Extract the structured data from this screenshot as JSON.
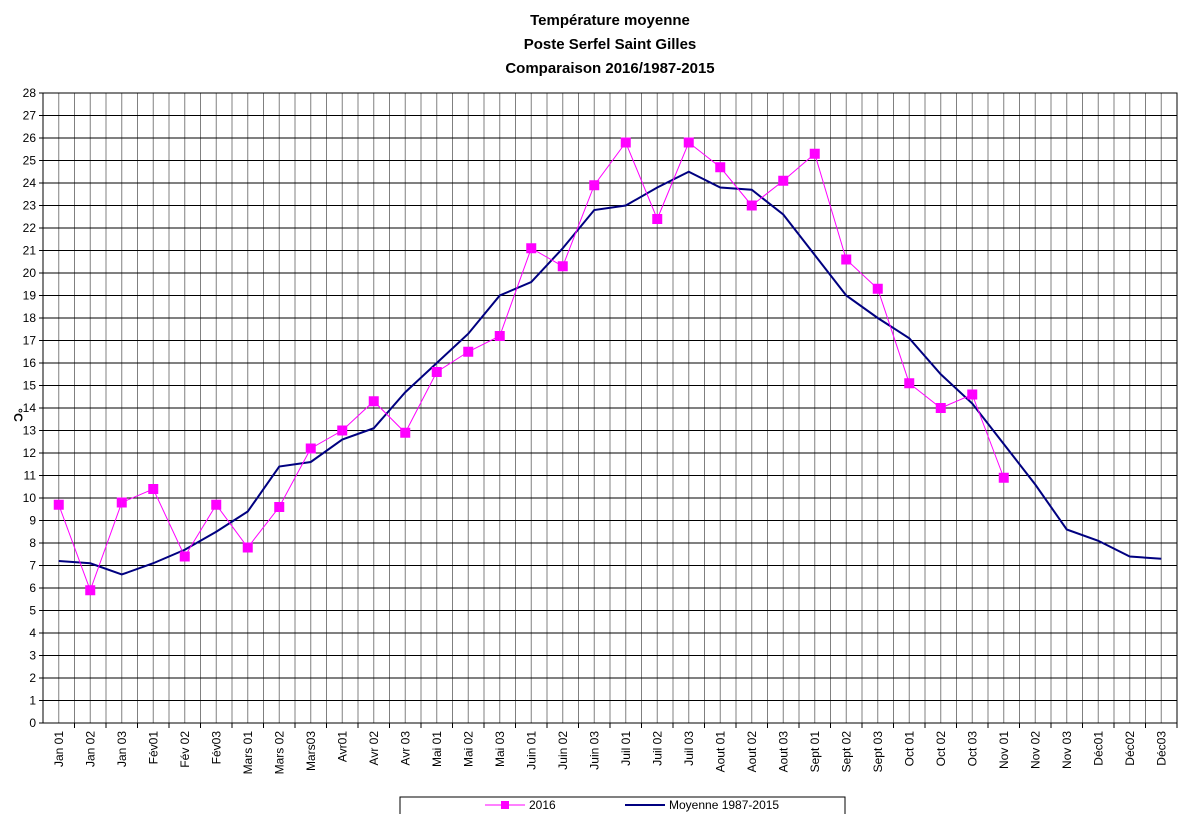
{
  "chart_data": {
    "type": "line",
    "title": [
      "Température moyenne",
      "Poste Serfel Saint Gilles",
      "Comparaison 2016/1987-2015"
    ],
    "y_label": "°C",
    "categories": [
      "Jan 01",
      "Jan 02",
      "Jan 03",
      "Fév01",
      "Fév 02",
      "Fév03",
      "Mars 01",
      "Mars 02",
      "Mars03",
      "Avr01",
      "Avr 02",
      "Avr 03",
      "Mai 01",
      "Mai 02",
      "Mai 03",
      "Juin 01",
      "Juin 02",
      "Juin 03",
      "Juil 01",
      "Juil 02",
      "Juil 03",
      "Aout 01",
      "Aout 02",
      "Aout 03",
      "Sept 01",
      "Sept 02",
      "Sept 03",
      "Oct 01",
      "Oct 02",
      "Oct 03",
      "Nov 01",
      "Nov 02",
      "Nov 03",
      "Déc01",
      "Déc02",
      "Déc03"
    ],
    "series": [
      {
        "name": "2016",
        "color": "#ff00ff",
        "marker": "square",
        "values": [
          9.7,
          5.9,
          9.8,
          10.4,
          7.4,
          9.7,
          7.8,
          9.6,
          12.2,
          13.0,
          14.3,
          12.9,
          15.6,
          16.5,
          17.2,
          21.1,
          20.3,
          23.9,
          25.8,
          22.4,
          25.8,
          24.7,
          23.0,
          24.1,
          25.3,
          20.6,
          19.3,
          15.1,
          14.0,
          14.6,
          10.9,
          null,
          null,
          null,
          null,
          null
        ]
      },
      {
        "name": "Moyenne 1987-2015",
        "color": "#000080",
        "marker": "none",
        "values": [
          7.2,
          7.1,
          6.6,
          7.1,
          7.7,
          8.5,
          9.4,
          11.4,
          11.6,
          12.6,
          13.1,
          14.7,
          16.0,
          17.3,
          19.0,
          19.6,
          21.1,
          22.8,
          23.0,
          23.8,
          24.5,
          23.8,
          23.7,
          22.6,
          20.8,
          19.0,
          18.0,
          17.1,
          15.5,
          14.2,
          12.4,
          10.6,
          8.6,
          8.1,
          7.4,
          7.3
        ]
      }
    ],
    "ylim": [
      0,
      28
    ],
    "yticks": [
      0,
      1,
      2,
      3,
      4,
      5,
      6,
      7,
      8,
      9,
      10,
      11,
      12,
      13,
      14,
      15,
      16,
      17,
      18,
      19,
      20,
      21,
      22,
      23,
      24,
      25,
      26,
      27,
      28
    ],
    "grid": true
  }
}
